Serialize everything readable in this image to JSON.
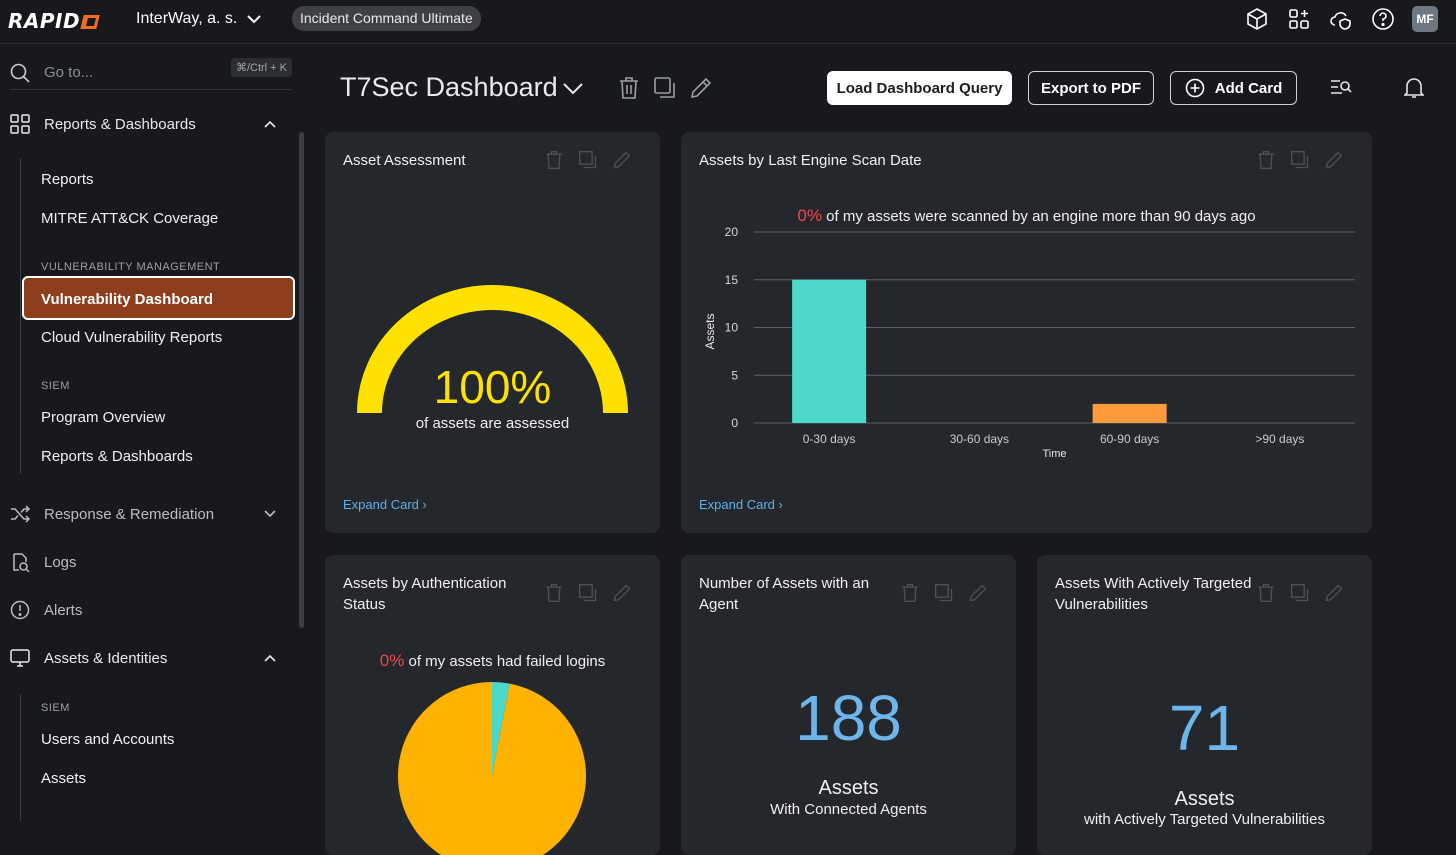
{
  "header": {
    "logo_text": "RAPID",
    "org_name": "InterWay, a. s.",
    "product_pill": "Incident Command Ultimate",
    "avatar_initials": "MF"
  },
  "sidebar": {
    "search_placeholder": "Go to...",
    "search_shortcut": "⌘/Ctrl + K",
    "sections": {
      "reports": "Reports & Dashboards",
      "response": "Response & Remediation",
      "logs": "Logs",
      "alerts": "Alerts",
      "assets": "Assets & Identities"
    },
    "reports_items": {
      "reports": "Reports",
      "mitre": "MITRE ATT&CK Coverage",
      "cat_vm": "VULNERABILITY MANAGEMENT",
      "vuln_dashboard": "Vulnerability Dashboard",
      "cloud_vuln": "Cloud Vulnerability Reports",
      "cat_siem": "SIEM",
      "program_overview": "Program Overview",
      "reports_dashboards": "Reports & Dashboards"
    },
    "assets_items": {
      "cat_siem": "SIEM",
      "users_accounts": "Users and Accounts",
      "assets": "Assets"
    }
  },
  "dashboard": {
    "title": "T7Sec Dashboard",
    "load_query": "Load Dashboard Query",
    "export_pdf": "Export to PDF",
    "add_card": "Add Card"
  },
  "cards": {
    "asset_assessment": {
      "title": "Asset Assessment",
      "value": "100%",
      "caption": "of assets are assessed",
      "expand": "Expand Card",
      "gauge_color": "#ffe100"
    },
    "last_scan": {
      "title": "Assets by Last Engine Scan Date",
      "pct": "0%",
      "headline": "of my assets were scanned by an engine more than 90 days ago",
      "expand": "Expand Card"
    },
    "auth_status": {
      "title_line1": "Assets by Authentication",
      "title_line2": "Status",
      "pct": "0%",
      "headline": "of my assets had failed logins"
    },
    "agents": {
      "title_line1": "Number of Assets with an",
      "title_line2": "Agent",
      "value": "188",
      "label": "Assets",
      "sublabel": "With Connected Agents"
    },
    "targeted": {
      "title_line1": "Assets With Actively Targeted",
      "title_line2": "Vulnerabilities",
      "value": "71",
      "label": "Assets",
      "sublabel": "with Actively Targeted Vulnerabilities"
    }
  },
  "chart_data": [
    {
      "type": "bar",
      "categories": [
        "0-30 days",
        "30-60 days",
        "60-90 days",
        ">90 days"
      ],
      "values": [
        15,
        0,
        2,
        0
      ],
      "colors": [
        "#4dd9c9",
        "#4dd9c9",
        "#ff9a3c",
        "#4dd9c9"
      ],
      "xlabel": "Time",
      "ylabel": "Assets",
      "ylim": [
        0,
        20
      ],
      "yticks": [
        "0",
        "5",
        "10",
        "15",
        "20"
      ],
      "grid": true
    },
    {
      "type": "pie",
      "slices": [
        {
          "label": "",
          "value": 97,
          "color": "#ffb300"
        },
        {
          "label": "",
          "value": 3,
          "color": "#4dd9c9"
        }
      ]
    }
  ]
}
